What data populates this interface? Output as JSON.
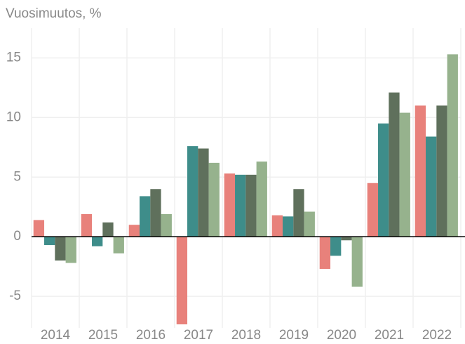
{
  "chart_data": {
    "type": "bar",
    "y_label": "Vuosimuutos, %",
    "categories": [
      "2014",
      "2015",
      "2016",
      "2017",
      "2018",
      "2019",
      "2020",
      "2021",
      "2022"
    ],
    "series": [
      {
        "color": "#e8817b",
        "values": [
          1.4,
          1.9,
          1.0,
          -7.35,
          5.3,
          1.8,
          -2.7,
          4.5,
          11.0
        ]
      },
      {
        "color": "#3e8d8a",
        "values": [
          -0.7,
          -0.8,
          3.4,
          7.6,
          5.2,
          1.7,
          -1.6,
          9.5,
          8.4
        ]
      },
      {
        "color": "#5f705c",
        "values": [
          -2.0,
          1.2,
          4.0,
          7.4,
          5.2,
          4.0,
          -0.3,
          12.1,
          11.0
        ]
      },
      {
        "color": "#96b28d",
        "values": [
          -2.2,
          -1.4,
          1.9,
          6.2,
          6.3,
          2.1,
          -4.2,
          10.4,
          15.3
        ]
      }
    ],
    "ylim": [
      -7.35,
      17.5
    ],
    "yticks": [
      -5,
      0,
      5,
      10,
      15
    ],
    "grid": true
  }
}
